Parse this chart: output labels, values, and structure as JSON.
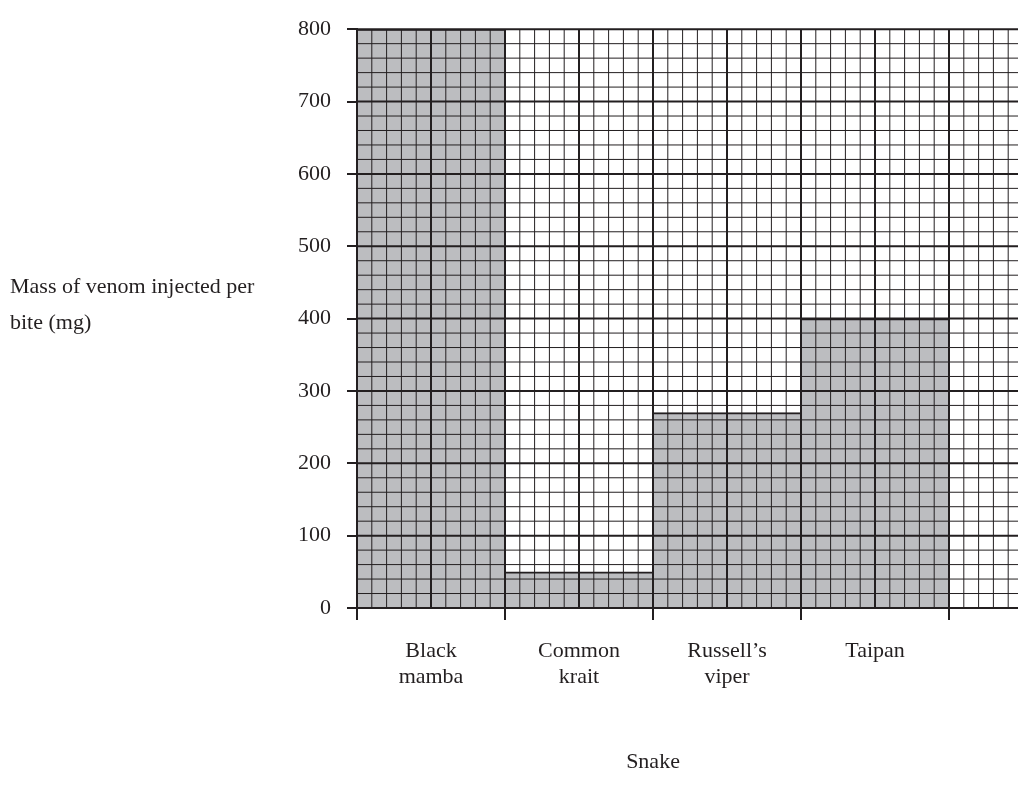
{
  "chart_data": {
    "type": "bar",
    "xlabel": "Snake",
    "ylabel": "Mass of venom injected per bite (mg)",
    "categories": [
      "Black mamba",
      "Common krait",
      "Russell’s viper",
      "Taipan"
    ],
    "values": [
      800,
      50,
      270,
      400
    ],
    "color": "#bcbdc0",
    "ylim": [
      0,
      800
    ],
    "yticks": [
      0,
      100,
      200,
      300,
      400,
      500,
      600,
      700,
      800
    ],
    "grid": true,
    "legend": false
  }
}
